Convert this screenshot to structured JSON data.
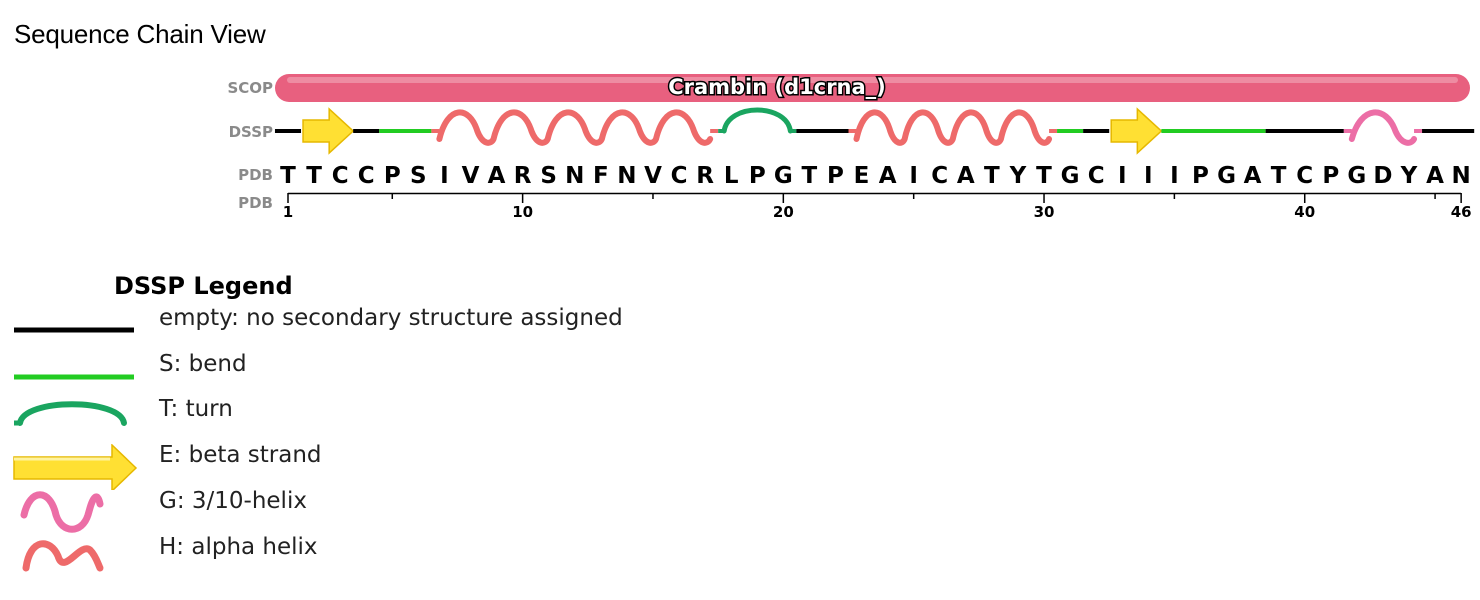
{
  "page": {
    "title": "Sequence Chain View"
  },
  "track_labels": {
    "scop": "SCOP",
    "dssp": "DSSP",
    "pdb_sequence": "PDB",
    "pdb_ruler": "PDB"
  },
  "scop_domain": {
    "label": "Crambin (d1crna_)",
    "start": 1,
    "end": 46,
    "color": "#e8607f"
  },
  "sequence": [
    "T",
    "T",
    "C",
    "C",
    "P",
    "S",
    "I",
    "V",
    "A",
    "R",
    "S",
    "N",
    "F",
    "N",
    "V",
    "C",
    "R",
    "L",
    "P",
    "G",
    "T",
    "P",
    "E",
    "A",
    "I",
    "C",
    "A",
    "T",
    "Y",
    "T",
    "G",
    "C",
    "I",
    "I",
    "I",
    "P",
    "G",
    "A",
    "T",
    "C",
    "P",
    "G",
    "D",
    "Y",
    "A",
    "N"
  ],
  "ruler": {
    "ticks": [
      1,
      10,
      20,
      30,
      40,
      46
    ]
  },
  "dssp_segments": [
    {
      "type": "empty",
      "start": 1,
      "end": 1
    },
    {
      "type": "E",
      "start": 2,
      "end": 3
    },
    {
      "type": "empty",
      "start": 4,
      "end": 4
    },
    {
      "type": "S",
      "start": 5,
      "end": 6
    },
    {
      "type": "H",
      "start": 7,
      "end": 17
    },
    {
      "type": "T",
      "start": 18,
      "end": 20
    },
    {
      "type": "empty",
      "start": 21,
      "end": 22
    },
    {
      "type": "H",
      "start": 23,
      "end": 30
    },
    {
      "type": "S",
      "start": 31,
      "end": 31
    },
    {
      "type": "empty",
      "start": 32,
      "end": 32
    },
    {
      "type": "E",
      "start": 33,
      "end": 34
    },
    {
      "type": "S",
      "start": 35,
      "end": 38
    },
    {
      "type": "empty",
      "start": 39,
      "end": 41
    },
    {
      "type": "G",
      "start": 42,
      "end": 44
    },
    {
      "type": "empty",
      "start": 45,
      "end": 46
    }
  ],
  "colors": {
    "empty": "#000000",
    "bend": "#22cc22",
    "turn": "#1aa560",
    "strand_fill": "#ffe033",
    "strand_stroke": "#e6b800",
    "helix_310": "#ec6ea6",
    "helix_alpha": "#ee6a6a",
    "label_gray": "#8a8a8a"
  },
  "legend": {
    "title": "DSSP Legend",
    "items": [
      {
        "key": "empty",
        "icon": "black-line-icon",
        "label": "empty: no secondary structure assigned"
      },
      {
        "key": "S",
        "icon": "green-line-icon",
        "label": "S: bend"
      },
      {
        "key": "T",
        "icon": "turn-arc-icon",
        "label": "T: turn"
      },
      {
        "key": "E",
        "icon": "strand-arrow-icon",
        "label": "E: beta strand"
      },
      {
        "key": "G",
        "icon": "helix-310-icon",
        "label": "G: 3/10-helix"
      },
      {
        "key": "H",
        "icon": "helix-alpha-icon",
        "label": "H: alpha helix"
      }
    ]
  }
}
